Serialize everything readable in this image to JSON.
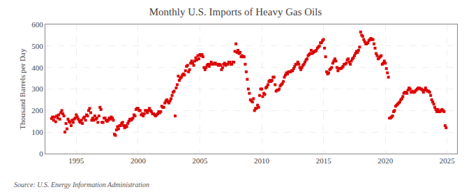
{
  "chart_data": {
    "type": "scatter",
    "title": "Monthly U.S. Imports of Heavy Gas Oils",
    "ylabel": "Thousand Barrels per Day",
    "annotations": [
      "Source: U.S. Energy Information Administration"
    ],
    "color": "#dd0000",
    "marker": "square",
    "grid": true,
    "xlim": [
      1992.5,
      2025.8
    ],
    "xticks": [
      1995,
      2000,
      2005,
      2010,
      2015,
      2020,
      2025
    ],
    "ylim": [
      0,
      600
    ],
    "yticks": [
      0,
      100,
      200,
      300,
      400,
      500,
      600
    ],
    "x": [
      1993.0,
      1993.083,
      1993.167,
      1993.25,
      1993.333,
      1993.417,
      1993.5,
      1993.583,
      1993.667,
      1993.75,
      1993.833,
      1993.917,
      1994.0,
      1994.083,
      1994.167,
      1994.25,
      1994.333,
      1994.417,
      1994.5,
      1994.583,
      1994.667,
      1994.75,
      1994.833,
      1994.917,
      1995.0,
      1995.083,
      1995.167,
      1995.25,
      1995.333,
      1995.417,
      1995.5,
      1995.583,
      1995.667,
      1995.75,
      1995.833,
      1995.917,
      1996.0,
      1996.083,
      1996.167,
      1996.25,
      1996.333,
      1996.417,
      1996.5,
      1996.583,
      1996.667,
      1996.75,
      1996.833,
      1996.917,
      1997.0,
      1997.083,
      1997.167,
      1997.25,
      1997.333,
      1997.417,
      1997.5,
      1997.583,
      1997.667,
      1997.75,
      1997.833,
      1997.917,
      1998.0,
      1998.083,
      1998.167,
      1998.25,
      1998.333,
      1998.417,
      1998.5,
      1998.583,
      1998.667,
      1998.75,
      1998.833,
      1998.917,
      1999.0,
      1999.083,
      1999.167,
      1999.25,
      1999.333,
      1999.417,
      1999.5,
      1999.583,
      1999.667,
      1999.75,
      1999.833,
      1999.917,
      2000.0,
      2000.083,
      2000.167,
      2000.25,
      2000.333,
      2000.417,
      2000.5,
      2000.583,
      2000.667,
      2000.75,
      2000.833,
      2000.917,
      2001.0,
      2001.083,
      2001.167,
      2001.25,
      2001.333,
      2001.417,
      2001.5,
      2001.583,
      2001.667,
      2001.75,
      2001.833,
      2001.917,
      2002.0,
      2002.083,
      2002.167,
      2002.25,
      2002.333,
      2002.417,
      2002.5,
      2002.583,
      2002.667,
      2002.75,
      2002.833,
      2002.917,
      2003.0,
      2003.083,
      2003.167,
      2003.25,
      2003.333,
      2003.417,
      2003.5,
      2003.583,
      2003.667,
      2003.75,
      2003.833,
      2003.917,
      2004.0,
      2004.083,
      2004.167,
      2004.25,
      2004.333,
      2004.417,
      2004.5,
      2004.583,
      2004.667,
      2004.75,
      2004.833,
      2004.917,
      2005.0,
      2005.083,
      2005.167,
      2005.25,
      2005.333,
      2005.417,
      2005.5,
      2005.583,
      2005.667,
      2005.75,
      2005.833,
      2005.917,
      2006.0,
      2006.083,
      2006.167,
      2006.25,
      2006.333,
      2006.417,
      2006.5,
      2006.583,
      2006.667,
      2006.75,
      2006.833,
      2006.917,
      2007.0,
      2007.083,
      2007.167,
      2007.25,
      2007.333,
      2007.417,
      2007.5,
      2007.583,
      2007.667,
      2007.75,
      2007.833,
      2007.917,
      2008.0,
      2008.083,
      2008.167,
      2008.25,
      2008.333,
      2008.417,
      2008.5,
      2008.583,
      2008.667,
      2008.75,
      2008.833,
      2008.917,
      2009.0,
      2009.083,
      2009.167,
      2009.25,
      2009.333,
      2009.417,
      2009.5,
      2009.583,
      2009.667,
      2009.75,
      2009.833,
      2009.917,
      2010.0,
      2010.083,
      2010.167,
      2010.25,
      2010.333,
      2010.417,
      2010.5,
      2010.583,
      2010.667,
      2010.75,
      2010.833,
      2010.917,
      2011.0,
      2011.083,
      2011.167,
      2011.25,
      2011.333,
      2011.417,
      2011.5,
      2011.583,
      2011.667,
      2011.75,
      2011.833,
      2011.917,
      2012.0,
      2012.083,
      2012.167,
      2012.25,
      2012.333,
      2012.417,
      2012.5,
      2012.583,
      2012.667,
      2012.75,
      2012.833,
      2012.917,
      2013.0,
      2013.083,
      2013.167,
      2013.25,
      2013.333,
      2013.417,
      2013.5,
      2013.583,
      2013.667,
      2013.75,
      2013.833,
      2013.917,
      2014.0,
      2014.083,
      2014.167,
      2014.25,
      2014.333,
      2014.417,
      2014.5,
      2014.583,
      2014.667,
      2014.75,
      2014.833,
      2014.917,
      2015.0,
      2015.083,
      2015.167,
      2015.25,
      2015.333,
      2015.417,
      2015.5,
      2015.583,
      2015.667,
      2015.75,
      2015.833,
      2015.917,
      2016.0,
      2016.083,
      2016.167,
      2016.25,
      2016.333,
      2016.417,
      2016.5,
      2016.583,
      2016.667,
      2016.75,
      2016.833,
      2016.917,
      2017.0,
      2017.083,
      2017.167,
      2017.25,
      2017.333,
      2017.417,
      2017.5,
      2017.583,
      2017.667,
      2017.75,
      2017.833,
      2017.917,
      2018.0,
      2018.083,
      2018.167,
      2018.25,
      2018.333,
      2018.417,
      2018.5,
      2018.583,
      2018.667,
      2018.75,
      2018.833,
      2018.917,
      2019.0,
      2019.083,
      2019.167,
      2019.25,
      2019.333,
      2019.417,
      2019.5,
      2019.583,
      2019.667,
      2019.75,
      2019.833,
      2019.917,
      2020.0,
      2020.083,
      2020.167,
      2020.25,
      2020.333,
      2020.417,
      2020.5,
      2020.583,
      2020.667,
      2020.75,
      2020.833,
      2020.917,
      2021.0,
      2021.083,
      2021.167,
      2021.25,
      2021.333,
      2021.417,
      2021.5,
      2021.583,
      2021.667,
      2021.75,
      2021.833,
      2021.917,
      2022.0,
      2022.083,
      2022.167,
      2022.25,
      2022.333,
      2022.417,
      2022.5,
      2022.583,
      2022.667,
      2022.75,
      2022.833,
      2022.917,
      2023.0,
      2023.083,
      2023.167,
      2023.25,
      2023.333,
      2023.417,
      2023.5,
      2023.583,
      2023.667,
      2023.75,
      2023.833,
      2023.917,
      2024.0,
      2024.083,
      2024.167,
      2024.25,
      2024.333,
      2024.417,
      2024.5,
      2024.583,
      2024.667,
      2024.75,
      2024.833,
      2024.917
    ],
    "values": [
      163,
      170,
      155,
      170,
      148,
      175,
      165,
      180,
      160,
      190,
      200,
      185,
      175,
      100,
      140,
      115,
      160,
      150,
      145,
      130,
      155,
      145,
      160,
      165,
      180,
      170,
      160,
      150,
      145,
      155,
      140,
      165,
      170,
      155,
      180,
      175,
      200,
      210,
      190,
      155,
      165,
      155,
      175,
      160,
      165,
      145,
      175,
      215,
      205,
      145,
      145,
      165,
      165,
      155,
      150,
      155,
      165,
      160,
      170,
      165,
      155,
      90,
      85,
      110,
      125,
      115,
      130,
      130,
      140,
      145,
      130,
      120,
      130,
      125,
      140,
      150,
      160,
      155,
      160,
      165,
      180,
      175,
      205,
      210,
      210,
      200,
      200,
      180,
      185,
      175,
      185,
      200,
      200,
      190,
      200,
      210,
      200,
      195,
      185,
      185,
      180,
      175,
      180,
      185,
      195,
      190,
      195,
      220,
      215,
      215,
      235,
      245,
      250,
      240,
      235,
      245,
      255,
      270,
      285,
      290,
      175,
      305,
      320,
      360,
      340,
      350,
      355,
      365,
      370,
      365,
      385,
      405,
      410,
      380,
      390,
      420,
      430,
      420,
      410,
      430,
      445,
      435,
      455,
      440,
      460,
      455,
      460,
      450,
      400,
      390,
      400,
      410,
      415,
      405,
      415,
      425,
      415,
      415,
      420,
      420,
      415,
      415,
      410,
      415,
      410,
      390,
      400,
      415,
      420,
      410,
      415,
      415,
      425,
      425,
      415,
      415,
      425,
      425,
      475,
      510,
      470,
      480,
      465,
      470,
      450,
      455,
      450,
      450,
      415,
      380,
      345,
      300,
      280,
      250,
      245,
      240,
      255,
      200,
      210,
      210,
      225,
      215,
      270,
      300,
      300,
      265,
      280,
      275,
      305,
      310,
      320,
      335,
      340,
      335,
      340,
      355,
      355,
      320,
      290,
      295,
      295,
      300,
      315,
      320,
      325,
      335,
      355,
      365,
      375,
      370,
      380,
      380,
      380,
      385,
      385,
      395,
      405,
      415,
      415,
      425,
      415,
      400,
      390,
      400,
      410,
      415,
      425,
      435,
      440,
      455,
      460,
      465,
      480,
      465,
      470,
      475,
      475,
      480,
      490,
      495,
      500,
      515,
      515,
      525,
      530,
      490,
      450,
      380,
      370,
      375,
      390,
      395,
      400,
      420,
      430,
      440,
      430,
      400,
      385,
      395,
      395,
      395,
      400,
      405,
      415,
      415,
      420,
      435,
      440,
      425,
      415,
      430,
      440,
      445,
      455,
      465,
      475,
      470,
      480,
      495,
      565,
      550,
      545,
      530,
      520,
      510,
      510,
      515,
      525,
      530,
      535,
      530,
      530,
      510,
      490,
      465,
      455,
      440,
      445,
      450,
      455,
      415,
      420,
      430,
      420,
      395,
      375,
      355,
      165,
      165,
      170,
      175,
      195,
      200,
      220,
      225,
      230,
      235,
      240,
      250,
      255,
      265,
      280,
      285,
      285,
      280,
      295,
      305,
      300,
      285,
      290,
      285,
      285,
      290,
      295,
      300,
      305,
      305,
      300,
      300,
      295,
      285,
      295,
      305,
      295,
      290,
      290,
      285,
      270,
      250,
      240,
      230,
      215,
      205,
      195,
      205,
      195,
      195,
      200,
      205,
      200,
      195,
      130,
      120
    ]
  }
}
